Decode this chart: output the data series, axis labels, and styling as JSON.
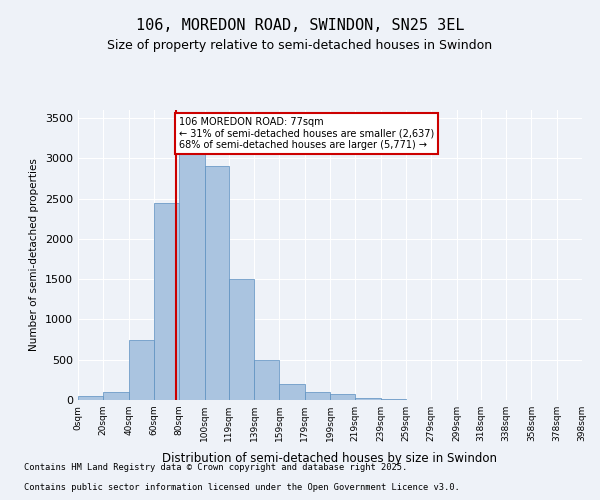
{
  "title_line1": "106, MOREDON ROAD, SWINDON, SN25 3EL",
  "title_line2": "Size of property relative to semi-detached houses in Swindon",
  "xlabel": "Distribution of semi-detached houses by size in Swindon",
  "ylabel": "Number of semi-detached properties",
  "bin_edges": [
    0,
    20,
    40,
    60,
    80,
    100,
    119,
    139,
    159,
    179,
    199,
    219,
    239,
    259,
    279,
    299,
    318,
    338,
    358,
    378,
    398
  ],
  "bar_heights": [
    50,
    100,
    750,
    2450,
    3050,
    2900,
    1500,
    500,
    200,
    100,
    75,
    30,
    10,
    5,
    3,
    2,
    1,
    1,
    0,
    0
  ],
  "bar_color": "#aac4e0",
  "bar_edgecolor": "#5a8fc0",
  "property_size": 77,
  "property_label": "106 MOREDON ROAD: 77sqm",
  "smaller_pct": 31,
  "smaller_count": 2637,
  "larger_pct": 68,
  "larger_count": 5771,
  "vline_color": "#cc0000",
  "annotation_box_color": "#cc0000",
  "ylim": [
    0,
    3600
  ],
  "yticks": [
    0,
    500,
    1000,
    1500,
    2000,
    2500,
    3000,
    3500
  ],
  "bg_color": "#eef2f8",
  "footer_line1": "Contains HM Land Registry data © Crown copyright and database right 2025.",
  "footer_line2": "Contains public sector information licensed under the Open Government Licence v3.0.",
  "tick_labels": [
    "0sqm",
    "20sqm",
    "40sqm",
    "60sqm",
    "80sqm",
    "100sqm",
    "119sqm",
    "139sqm",
    "159sqm",
    "179sqm",
    "199sqm",
    "219sqm",
    "239sqm",
    "259sqm",
    "279sqm",
    "299sqm",
    "318sqm",
    "338sqm",
    "358sqm",
    "378sqm",
    "398sqm"
  ]
}
